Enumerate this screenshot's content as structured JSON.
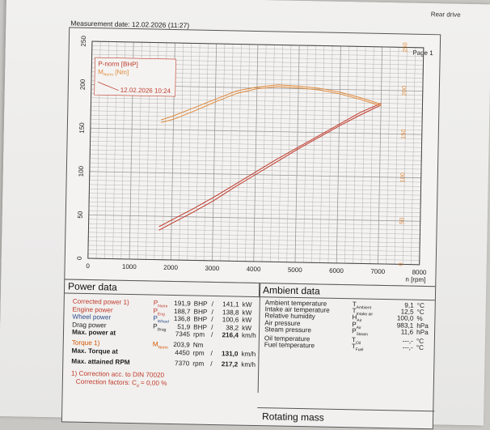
{
  "header": {
    "drive_label": "Rear drive",
    "measurement_date": "Measurement date: 12.02.2026 (11:27)",
    "page_label": "Page 1"
  },
  "chart_data": {
    "type": "line",
    "xlabel": "n [rpm]",
    "x_ticks": [
      "0",
      "1000",
      "2000",
      "3000",
      "4000",
      "5000",
      "6000",
      "7000",
      "8000"
    ],
    "y_left_ticks": [
      "0",
      "50",
      "100",
      "150",
      "200",
      "250"
    ],
    "y_right_ticks": [
      "0",
      "50",
      "100",
      "150",
      "200",
      "250"
    ],
    "xlim": [
      0,
      8000
    ],
    "ylim": [
      0,
      250
    ],
    "legend": {
      "power_label": "P-norm [BHP]",
      "torque_label_main": "M",
      "torque_label_sub": "Norm",
      "torque_label_unit": "[Nm]",
      "date": "12.02.2026 10:24"
    },
    "colors": {
      "power": "#c0392b",
      "torque": "#e08a3c",
      "grid": "#9a9a9a"
    },
    "series": [
      {
        "name": "P-norm [BHP]",
        "x": [
          1700,
          2000,
          2500,
          3000,
          3500,
          4000,
          4500,
          5000,
          5500,
          6000,
          6500,
          7000
        ],
        "y": [
          38,
          46,
          59,
          73,
          88,
          103,
          118,
          132,
          146,
          160,
          174,
          185
        ]
      },
      {
        "name": "P-norm [BHP] (run 2)",
        "x": [
          1700,
          2000,
          2500,
          3000,
          3500,
          4000,
          4500,
          5000,
          5500,
          6000,
          6500,
          7000
        ],
        "y": [
          34,
          42,
          55,
          69,
          85,
          100,
          115,
          130,
          144,
          158,
          171,
          183
        ]
      },
      {
        "name": "M Norm [Nm]",
        "x": [
          1700,
          2000,
          2500,
          3000,
          3500,
          4000,
          4500,
          5000,
          5500,
          6000,
          6500,
          7000
        ],
        "y": [
          161,
          166,
          176,
          186,
          196,
          201,
          204,
          203,
          201,
          197,
          191,
          184
        ]
      },
      {
        "name": "M Norm [Nm] (run 2)",
        "x": [
          1700,
          2000,
          2500,
          3000,
          3500,
          4000,
          4500,
          5000,
          5500,
          6000,
          6500,
          7000
        ],
        "y": [
          158,
          162,
          172,
          183,
          193,
          199,
          202,
          201,
          199,
          195,
          189,
          182
        ]
      }
    ]
  },
  "power_data": {
    "title": "Power data",
    "rows": [
      {
        "label": "Corrected power",
        "sup": "1)",
        "sym": "P",
        "sub": "Norm",
        "v1": "191,9",
        "u1": "BHP",
        "sep": "/",
        "v2": "141,1",
        "u2": "kW",
        "cls": "red"
      },
      {
        "label": "Engine power",
        "sup": "",
        "sym": "P",
        "sub": "Eng",
        "v1": "188,7",
        "u1": "BHP",
        "sep": "/",
        "v2": "138,8",
        "u2": "kW",
        "cls": "red"
      },
      {
        "label": "Wheel power",
        "sup": "",
        "sym": "P",
        "sub": "Wheel",
        "v1": "136,8",
        "u1": "BHP",
        "sep": "/",
        "v2": "100,6",
        "u2": "kW",
        "cls": "blue"
      },
      {
        "label": "Drag power",
        "sup": "",
        "sym": "P",
        "sub": "Drag",
        "v1": "51,9",
        "u1": "BHP",
        "sep": "/",
        "v2": "38,2",
        "u2": "kW",
        "cls": ""
      }
    ],
    "max_power_at": {
      "label": "Max. power at",
      "v1": "7345",
      "u1": "rpm",
      "sep": "/",
      "v2": "216,4",
      "u2": "km/h"
    },
    "torque": {
      "label": "Torque",
      "sup": "1)",
      "sym": "M",
      "sub": "Norm",
      "value": "203,9",
      "unit": "Nm"
    },
    "max_torque_at": {
      "label": "Max. Torque at",
      "v1": "4450",
      "u1": "rpm",
      "sep": "/",
      "v2": "131,0",
      "u2": "km/h"
    },
    "max_rpm": {
      "label": "Max. attained RPM",
      "v1": "7370",
      "u1": "rpm",
      "sep": "/",
      "v2": "217,2",
      "u2": "km/h"
    },
    "footnote1": "1) Correction acc. to DIN 70020",
    "footnote2_label": "Correction factors:",
    "footnote2_sym": "C",
    "footnote2_sub": "d",
    "footnote2_val": "= 0,00 %"
  },
  "ambient_data": {
    "title": "Ambient data",
    "rows": [
      {
        "label": "Ambient temperature",
        "sym": "T",
        "sub": "Ambient",
        "value": "9,1",
        "unit": "°C"
      },
      {
        "label": "Intake air temperature",
        "sym": "T",
        "sub": "Intake air",
        "value": "12,5",
        "unit": "°C"
      },
      {
        "label": "Relative humidity",
        "sym": "H",
        "sub": "Air",
        "value": "100,0",
        "unit": "%"
      },
      {
        "label": "Air pressure",
        "sym": "P",
        "sub": "Air",
        "value": "983,1",
        "unit": "hPa"
      },
      {
        "label": "Steam pressure",
        "sym": "P",
        "sub": "Steam",
        "value": "11,6",
        "unit": "hPa"
      },
      {
        "label": "Oil temperature",
        "sym": "T",
        "sub": "Oil",
        "value": "---,-",
        "unit": "°C"
      },
      {
        "label": "Fuel temperature",
        "sym": "T",
        "sub": "Fuel",
        "value": "---,-",
        "unit": "°C"
      }
    ]
  },
  "rotating_mass": {
    "title": "Rotating mass"
  }
}
